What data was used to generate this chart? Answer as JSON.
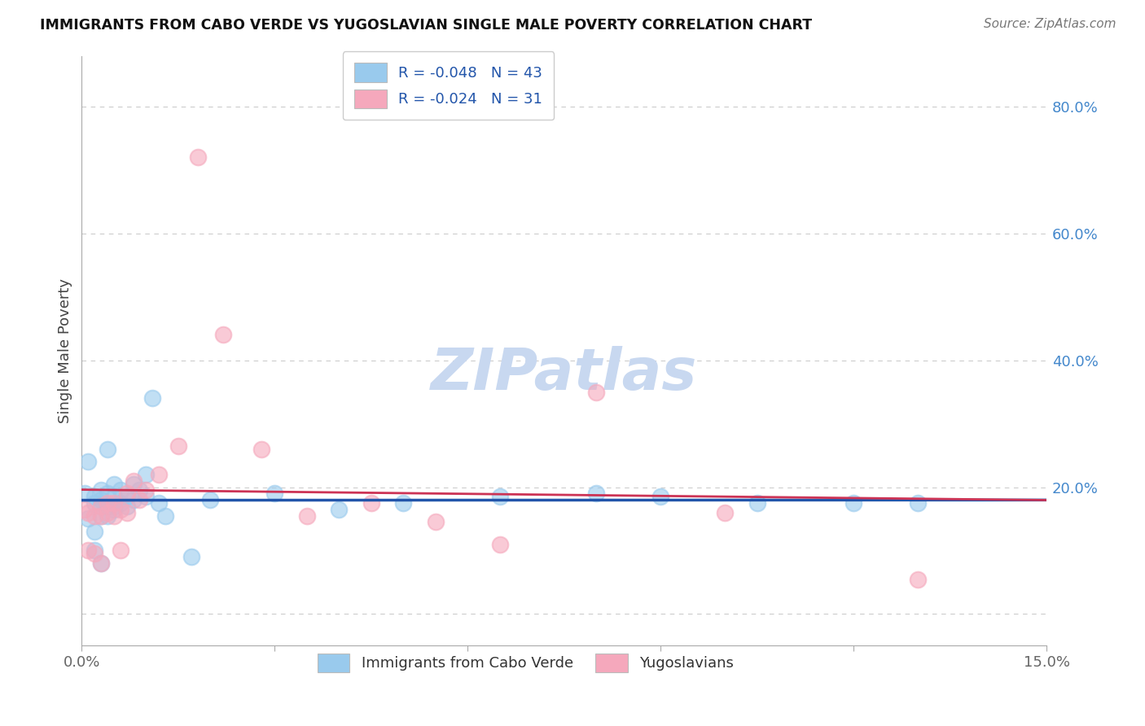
{
  "title": "IMMIGRANTS FROM CABO VERDE VS YUGOSLAVIAN SINGLE MALE POVERTY CORRELATION CHART",
  "source": "Source: ZipAtlas.com",
  "ylabel_left": "Single Male Poverty",
  "legend_label1": "R = -0.048   N = 43",
  "legend_label2": "R = -0.024   N = 31",
  "legend_bottom_label1": "Immigrants from Cabo Verde",
  "legend_bottom_label2": "Yugoslavians",
  "cabo_verde_color": "#99CAED",
  "yugoslavian_color": "#F5A8BC",
  "regression_cabo_color": "#2255AA",
  "regression_yugo_color": "#CC3355",
  "watermark_color": "#C8D8F0",
  "xlim": [
    0.0,
    0.15
  ],
  "ylim": [
    -0.05,
    0.88
  ],
  "ylabel_right_ticks": [
    0.0,
    0.2,
    0.4,
    0.6,
    0.8
  ],
  "ylabel_right_labels": [
    "",
    "20.0%",
    "40.0%",
    "60.0%",
    "80.0%"
  ],
  "background_color": "#FFFFFF",
  "grid_color": "#CCCCCC",
  "cabo_verde_x": [
    0.0005,
    0.001,
    0.001,
    0.002,
    0.002,
    0.002,
    0.002,
    0.003,
    0.003,
    0.003,
    0.003,
    0.003,
    0.004,
    0.004,
    0.004,
    0.004,
    0.005,
    0.005,
    0.005,
    0.005,
    0.006,
    0.006,
    0.007,
    0.007,
    0.008,
    0.008,
    0.009,
    0.01,
    0.01,
    0.011,
    0.012,
    0.013,
    0.017,
    0.02,
    0.03,
    0.04,
    0.05,
    0.065,
    0.08,
    0.09,
    0.105,
    0.12,
    0.13
  ],
  "cabo_verde_y": [
    0.19,
    0.24,
    0.15,
    0.185,
    0.175,
    0.13,
    0.1,
    0.195,
    0.18,
    0.17,
    0.155,
    0.08,
    0.26,
    0.19,
    0.17,
    0.155,
    0.205,
    0.185,
    0.17,
    0.165,
    0.195,
    0.175,
    0.185,
    0.17,
    0.205,
    0.18,
    0.195,
    0.22,
    0.185,
    0.34,
    0.175,
    0.155,
    0.09,
    0.18,
    0.19,
    0.165,
    0.175,
    0.185,
    0.19,
    0.185,
    0.175,
    0.175,
    0.175
  ],
  "yugoslavian_x": [
    0.0005,
    0.001,
    0.001,
    0.002,
    0.002,
    0.003,
    0.003,
    0.003,
    0.004,
    0.004,
    0.005,
    0.005,
    0.006,
    0.006,
    0.007,
    0.007,
    0.008,
    0.009,
    0.01,
    0.012,
    0.015,
    0.018,
    0.022,
    0.028,
    0.035,
    0.045,
    0.055,
    0.065,
    0.08,
    0.1,
    0.13
  ],
  "yugoslavian_y": [
    0.165,
    0.16,
    0.1,
    0.155,
    0.095,
    0.17,
    0.155,
    0.08,
    0.175,
    0.16,
    0.175,
    0.155,
    0.165,
    0.1,
    0.19,
    0.16,
    0.21,
    0.18,
    0.195,
    0.22,
    0.265,
    0.72,
    0.44,
    0.26,
    0.155,
    0.175,
    0.145,
    0.11,
    0.35,
    0.16,
    0.055
  ]
}
